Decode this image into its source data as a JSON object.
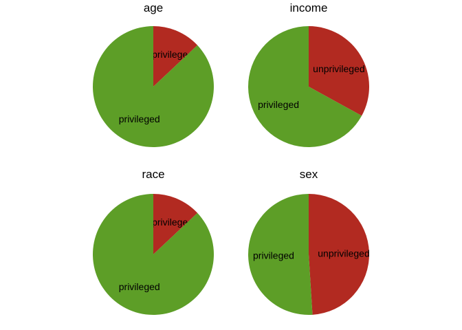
{
  "chart_data": [
    {
      "type": "pie",
      "title": "age",
      "slices": [
        {
          "label": "unprivileged",
          "value": 0.13,
          "color": "#b22a21"
        },
        {
          "label": "privileged",
          "value": 0.87,
          "color": "#5d9e27"
        }
      ]
    },
    {
      "type": "pie",
      "title": "income",
      "slices": [
        {
          "label": "unprivileged",
          "value": 0.33,
          "color": "#b22a21"
        },
        {
          "label": "privileged",
          "value": 0.67,
          "color": "#5d9e27"
        }
      ]
    },
    {
      "type": "pie",
      "title": "race",
      "slices": [
        {
          "label": "unprivileged",
          "value": 0.13,
          "color": "#b22a21"
        },
        {
          "label": "privileged",
          "value": 0.87,
          "color": "#5d9e27"
        }
      ]
    },
    {
      "type": "pie",
      "title": "sex",
      "slices": [
        {
          "label": "unprivileged",
          "value": 0.49,
          "color": "#b22a21"
        },
        {
          "label": "privileged",
          "value": 0.51,
          "color": "#5d9e27"
        }
      ]
    }
  ]
}
